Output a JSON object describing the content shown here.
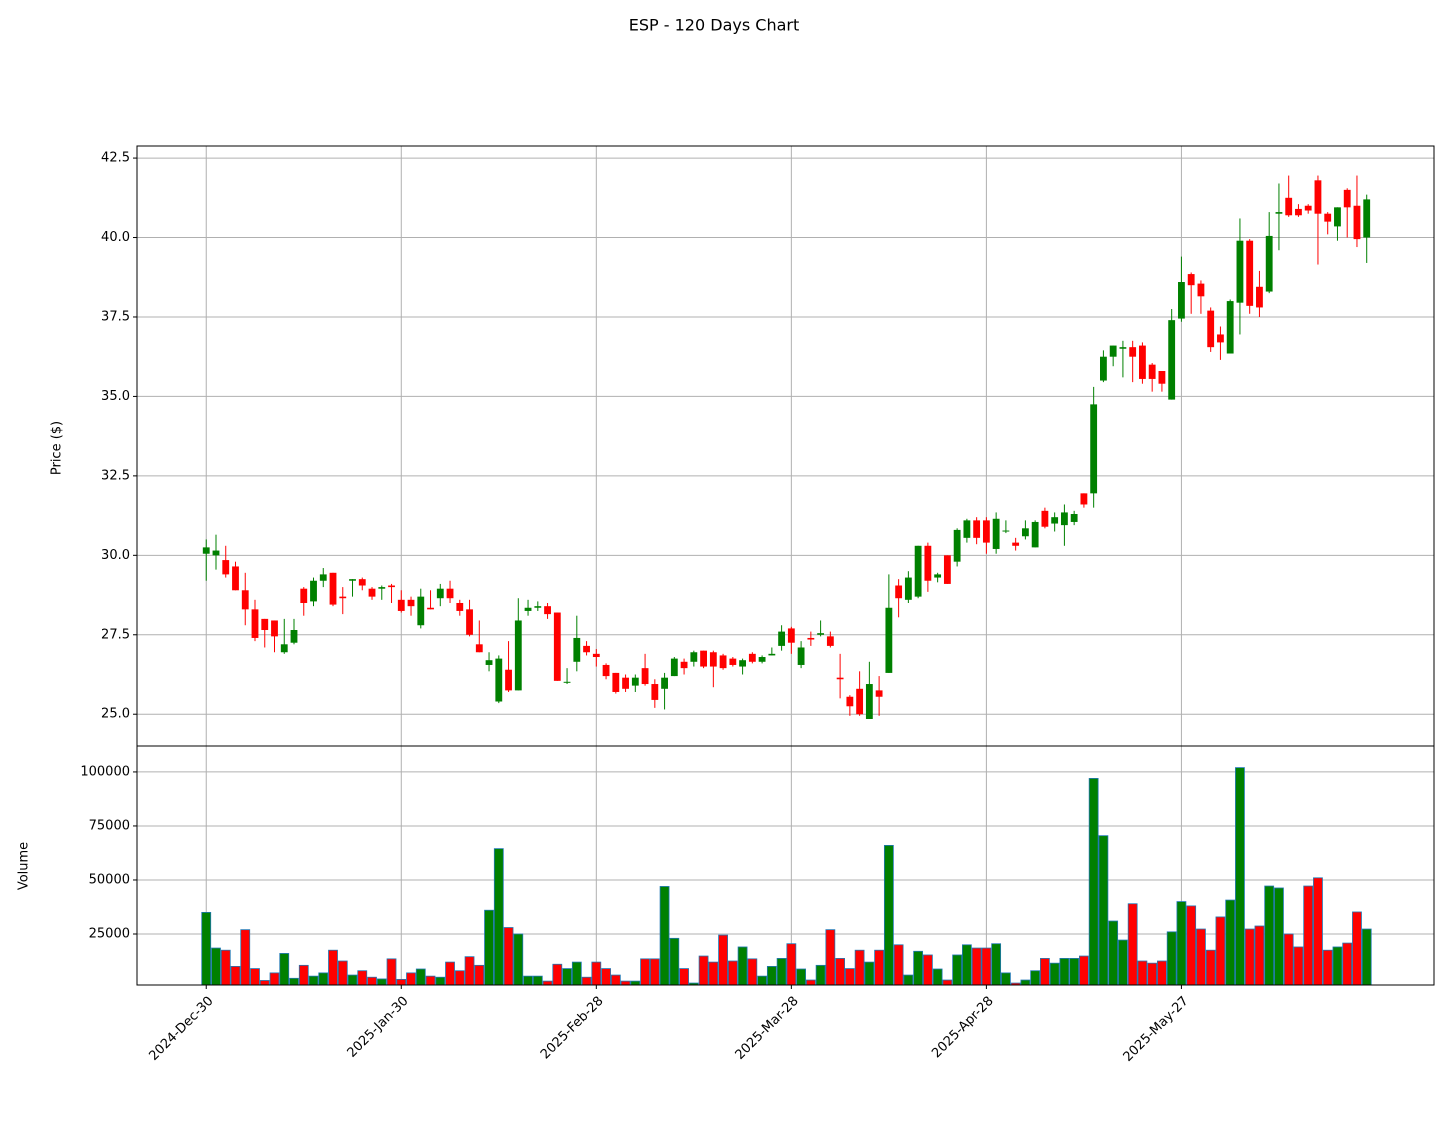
{
  "chart_data": {
    "type": "candlestick",
    "title": "ESP - 120 Days Chart",
    "ylabel": "Price ($)",
    "volume_ylabel": "Volume",
    "categories": [
      "2024-Dec-30",
      null,
      null,
      null,
      null,
      null,
      null,
      null,
      null,
      null,
      null,
      null,
      null,
      null,
      null,
      null,
      null,
      null,
      null,
      null,
      "2025-Jan-30",
      null,
      null,
      null,
      null,
      null,
      null,
      null,
      null,
      null,
      null,
      null,
      null,
      null,
      null,
      null,
      null,
      null,
      null,
      null,
      "2025-Feb-28",
      null,
      null,
      null,
      null,
      null,
      null,
      null,
      null,
      null,
      null,
      null,
      null,
      null,
      null,
      null,
      null,
      null,
      null,
      null,
      "2025-Mar-28",
      null,
      null,
      null,
      null,
      null,
      null,
      null,
      null,
      null,
      null,
      null,
      null,
      null,
      null,
      null,
      null,
      null,
      null,
      null,
      "2025-Apr-28",
      null,
      null,
      null,
      null,
      null,
      null,
      null,
      null,
      null,
      null,
      null,
      null,
      null,
      null,
      null,
      null,
      null,
      null,
      null,
      "2025-May-27",
      null,
      null,
      null,
      null,
      null,
      null,
      null,
      null,
      null,
      null,
      null,
      null,
      null,
      null,
      null,
      null,
      null,
      null,
      null
    ],
    "xlim": [
      -7.1,
      125.9
    ],
    "open": [
      30.05,
      30.0,
      29.85,
      29.65,
      28.9,
      28.3,
      28.0,
      27.95,
      26.95,
      27.25,
      28.95,
      28.55,
      29.2,
      29.45,
      28.7,
      29.2,
      29.25,
      28.95,
      28.95,
      29.05,
      28.6,
      28.6,
      27.8,
      28.35,
      28.65,
      28.95,
      28.5,
      28.3,
      27.2,
      26.55,
      25.4,
      26.4,
      25.75,
      28.25,
      28.35,
      28.4,
      28.2,
      26.0,
      26.65,
      27.15,
      26.9,
      26.55,
      26.3,
      26.15,
      25.9,
      26.45,
      25.95,
      25.8,
      26.2,
      26.65,
      26.65,
      27.0,
      26.95,
      26.85,
      26.75,
      26.5,
      26.9,
      26.65,
      26.85,
      27.15,
      27.7,
      26.55,
      27.4,
      27.5,
      27.45,
      26.15,
      25.55,
      25.8,
      24.85,
      25.75,
      26.3,
      29.05,
      28.6,
      28.7,
      30.3,
      29.3,
      30.0,
      29.8,
      30.55,
      31.1,
      31.1,
      30.2,
      30.75,
      30.4,
      30.6,
      30.25,
      31.4,
      31.0,
      30.95,
      31.05,
      31.95,
      31.95,
      35.5,
      36.25,
      36.5,
      36.55,
      36.6,
      36.0,
      35.8,
      34.9,
      37.45,
      38.85,
      38.55,
      37.7,
      36.95,
      36.35,
      37.95,
      39.9,
      38.45,
      38.3,
      40.75,
      41.25,
      40.9,
      41.0,
      41.8,
      40.75,
      40.35,
      41.5,
      41.0,
      40.0
    ],
    "high": [
      30.5,
      30.65,
      30.3,
      29.8,
      29.45,
      28.6,
      28.0,
      27.95,
      28.0,
      28.0,
      29.0,
      29.3,
      29.6,
      29.45,
      29.0,
      29.25,
      29.3,
      29.0,
      29.05,
      29.1,
      28.9,
      28.7,
      28.95,
      28.9,
      29.1,
      29.2,
      28.6,
      28.6,
      27.95,
      26.95,
      26.85,
      27.3,
      28.65,
      28.6,
      28.55,
      28.5,
      28.2,
      26.45,
      28.1,
      27.3,
      27.05,
      26.6,
      26.3,
      26.25,
      26.25,
      26.9,
      26.1,
      26.3,
      26.8,
      26.75,
      27.0,
      27.0,
      27.0,
      26.9,
      26.8,
      26.75,
      26.95,
      26.85,
      27.1,
      27.8,
      27.75,
      27.3,
      27.6,
      27.95,
      27.6,
      26.9,
      25.6,
      26.35,
      26.65,
      26.2,
      29.4,
      29.25,
      29.5,
      30.3,
      30.4,
      29.45,
      30.0,
      30.85,
      31.15,
      31.2,
      31.2,
      31.35,
      31.1,
      30.55,
      31.1,
      31.1,
      31.5,
      31.35,
      31.6,
      31.4,
      31.95,
      35.3,
      36.45,
      36.6,
      36.75,
      36.75,
      36.7,
      36.05,
      35.8,
      37.75,
      39.4,
      38.9,
      38.65,
      37.8,
      37.2,
      38.05,
      40.6,
      39.95,
      38.95,
      40.8,
      41.7,
      41.95,
      41.05,
      41.05,
      41.95,
      40.8,
      40.95,
      41.55,
      41.95,
      41.35
    ],
    "low": [
      29.2,
      29.55,
      29.3,
      28.9,
      27.8,
      27.3,
      27.1,
      26.95,
      26.9,
      27.2,
      28.1,
      28.4,
      29.0,
      28.4,
      28.15,
      28.7,
      28.9,
      28.6,
      28.6,
      28.5,
      28.2,
      28.1,
      27.7,
      28.3,
      28.4,
      28.5,
      28.1,
      27.45,
      26.95,
      26.35,
      25.35,
      25.7,
      25.75,
      28.1,
      28.25,
      28.0,
      26.05,
      25.95,
      26.35,
      26.85,
      26.5,
      26.1,
      25.65,
      25.7,
      25.7,
      25.9,
      25.2,
      25.15,
      26.2,
      26.25,
      26.5,
      26.45,
      25.85,
      26.4,
      26.5,
      26.25,
      26.6,
      26.6,
      26.85,
      27.0,
      26.9,
      26.45,
      27.15,
      27.45,
      27.1,
      25.5,
      24.95,
      24.95,
      24.85,
      24.95,
      26.3,
      28.05,
      28.5,
      28.65,
      28.85,
      29.15,
      29.1,
      29.65,
      30.4,
      30.35,
      30.05,
      30.05,
      30.7,
      30.15,
      30.5,
      30.25,
      30.85,
      30.75,
      30.3,
      30.95,
      31.5,
      31.5,
      35.45,
      35.95,
      35.6,
      35.45,
      35.4,
      35.15,
      35.15,
      34.9,
      37.35,
      37.6,
      37.6,
      36.4,
      36.15,
      36.35,
      36.95,
      37.6,
      37.5,
      38.25,
      39.6,
      40.65,
      40.65,
      40.75,
      39.15,
      40.1,
      39.9,
      40.0,
      39.7,
      39.2
    ],
    "close": [
      30.25,
      30.15,
      29.4,
      28.9,
      28.3,
      27.4,
      27.65,
      27.45,
      27.2,
      27.65,
      28.5,
      29.2,
      29.4,
      28.45,
      28.65,
      29.25,
      29.05,
      28.7,
      29.0,
      29.0,
      28.25,
      28.4,
      28.7,
      28.3,
      28.95,
      28.65,
      28.25,
      27.5,
      26.95,
      26.7,
      26.75,
      25.75,
      27.95,
      28.35,
      28.4,
      28.15,
      26.05,
      26.02,
      27.4,
      26.95,
      26.8,
      26.2,
      25.7,
      25.8,
      26.15,
      25.95,
      25.45,
      26.15,
      26.75,
      26.45,
      26.95,
      26.5,
      26.5,
      26.45,
      26.55,
      26.7,
      26.65,
      26.8,
      26.9,
      27.6,
      27.25,
      27.1,
      27.35,
      27.55,
      27.15,
      26.1,
      25.25,
      25.0,
      25.95,
      25.55,
      28.35,
      28.65,
      29.3,
      30.3,
      29.2,
      29.4,
      29.1,
      30.8,
      31.1,
      30.55,
      30.4,
      31.15,
      30.78,
      30.3,
      30.85,
      31.05,
      30.9,
      31.2,
      31.35,
      31.3,
      31.6,
      34.75,
      36.25,
      36.6,
      36.55,
      36.25,
      35.55,
      35.55,
      35.4,
      37.4,
      38.6,
      38.5,
      38.15,
      36.55,
      36.7,
      38.0,
      39.9,
      37.85,
      37.8,
      40.05,
      40.8,
      40.7,
      40.7,
      40.85,
      40.75,
      40.5,
      40.95,
      40.95,
      39.95,
      41.2
    ],
    "volume": [
      35000,
      18500,
      17500,
      10000,
      27000,
      9000,
      3500,
      7000,
      16000,
      4500,
      10500,
      5500,
      7000,
      17500,
      12500,
      6000,
      8000,
      5000,
      4200,
      13500,
      4000,
      7000,
      8800,
      5500,
      5000,
      12000,
      8000,
      14500,
      10500,
      36000,
      64500,
      28000,
      25000,
      5500,
      5500,
      3200,
      11000,
      9000,
      12000,
      5000,
      12000,
      9000,
      6000,
      3200,
      3200,
      13500,
      13500,
      47000,
      23000,
      9000,
      2300,
      14800,
      12000,
      24500,
      12500,
      19000,
      13500,
      5500,
      10000,
      13700,
      20500,
      8800,
      3700,
      10500,
      27000,
      13700,
      9000,
      17500,
      12000,
      17500,
      66000,
      20000,
      6000,
      17000,
      15300,
      8800,
      3700,
      15300,
      20000,
      18500,
      18500,
      20500,
      7000,
      2300,
      3700,
      8000,
      13700,
      11500,
      13700,
      13700,
      14800,
      97000,
      70500,
      31000,
      22200,
      39000,
      12500,
      11500,
      12500,
      26000,
      40000,
      38000,
      27300,
      17500,
      32900,
      40700,
      102000,
      27300,
      28700,
      47200,
      46300,
      25000,
      19000,
      47200,
      51000,
      17500,
      19000,
      20800,
      35200,
      27300
    ],
    "ylim": [
      24.0,
      42.88
    ],
    "yticks": [
      {
        "value": 25,
        "label": "25.0"
      },
      {
        "value": 27.5,
        "label": "27.5"
      },
      {
        "value": 30,
        "label": "30.0"
      },
      {
        "value": 32.5,
        "label": "32.5"
      },
      {
        "value": 35,
        "label": "35.0"
      },
      {
        "value": 37.5,
        "label": "37.5"
      },
      {
        "value": 40,
        "label": "40.0"
      },
      {
        "value": 42.5,
        "label": "42.5"
      }
    ],
    "volume_ylim": [
      1400,
      112000
    ],
    "volume_yticks": [
      25000,
      50000,
      75000,
      100000
    ],
    "up_color": "#008000",
    "down_color": "#ff0000",
    "volume_edge_color": "#1f77b4",
    "grid": true
  }
}
